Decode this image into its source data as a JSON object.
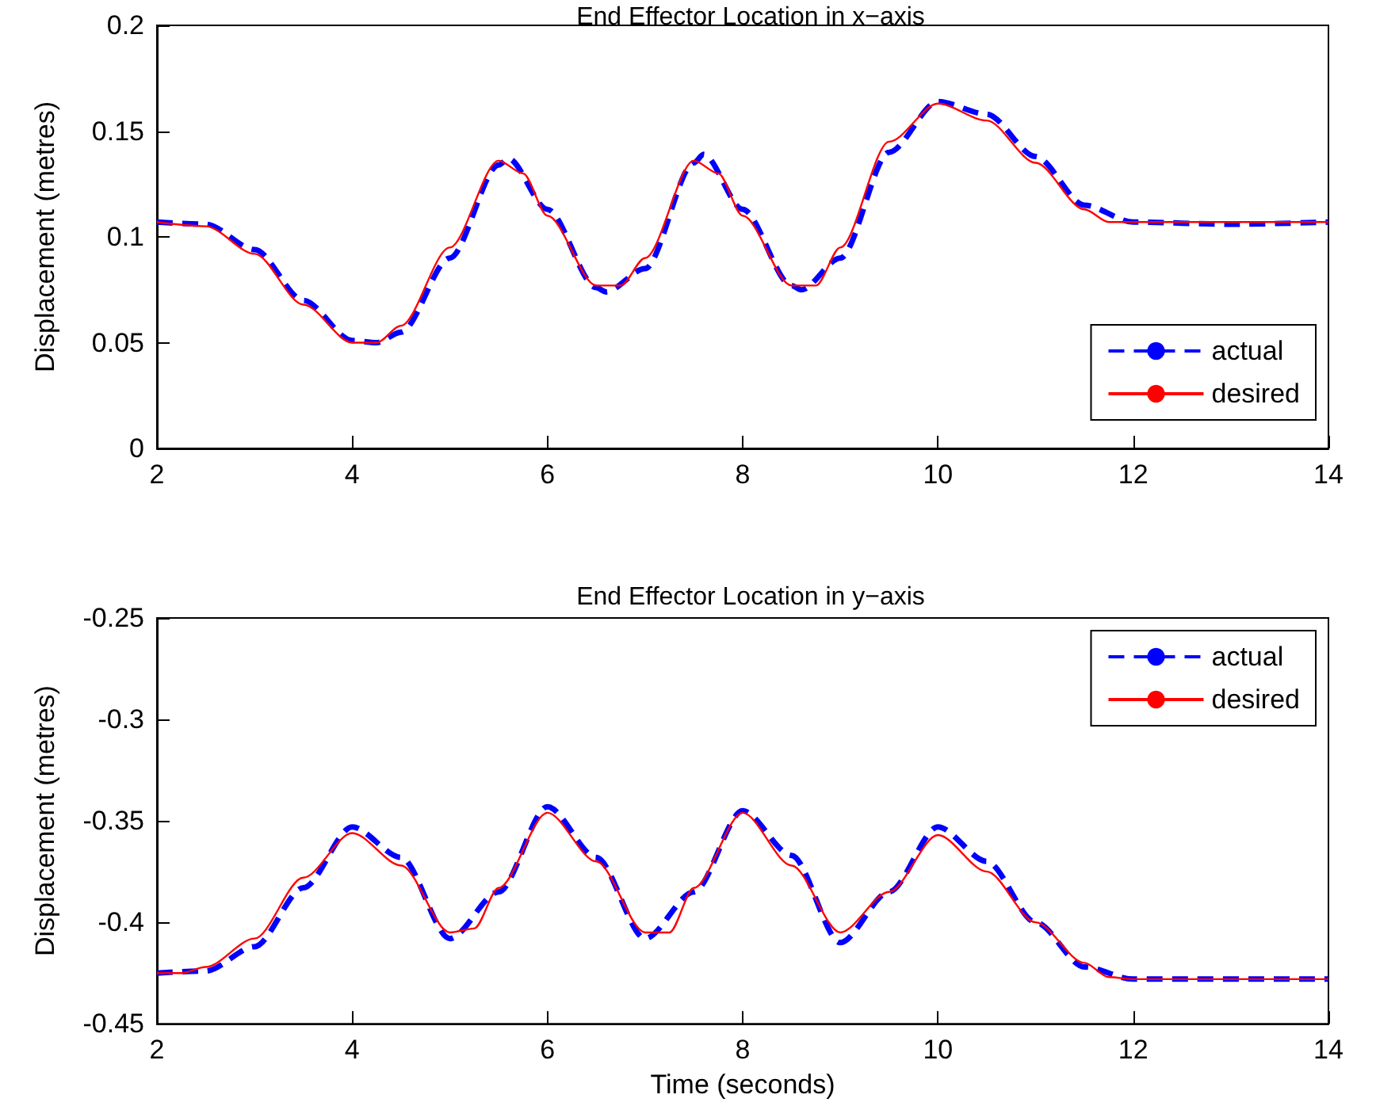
{
  "chart_data": [
    {
      "type": "line",
      "title": "End Effector Location in x−axis",
      "ylabel": "Displacement (metres)",
      "xlim": [
        2,
        14
      ],
      "xticks": [
        2,
        4,
        6,
        8,
        10,
        12,
        14
      ],
      "ylim": [
        0,
        0.2
      ],
      "yticks": [
        0,
        0.05,
        0.1,
        0.15,
        0.2
      ],
      "grid": false,
      "legend": "bottom right",
      "marker": "none",
      "series": [
        {
          "name": "actual",
          "color": "#0000ff",
          "line_style": "dashed",
          "x": [
            2,
            2.5,
            3,
            3.5,
            4,
            4.25,
            4.5,
            5,
            5.5,
            5.6,
            6,
            6.5,
            6.6,
            7,
            7.5,
            7.6,
            8,
            8.5,
            8.6,
            9,
            9.5,
            10,
            10.5,
            11,
            11.5,
            12,
            13,
            14
          ],
          "values": [
            0.107,
            0.106,
            0.094,
            0.07,
            0.051,
            0.05,
            0.055,
            0.09,
            0.134,
            0.137,
            0.113,
            0.076,
            0.074,
            0.085,
            0.135,
            0.139,
            0.113,
            0.077,
            0.075,
            0.09,
            0.14,
            0.164,
            0.158,
            0.138,
            0.115,
            0.107,
            0.106,
            0.107
          ]
        },
        {
          "name": "desired",
          "color": "#ff0000",
          "line_style": "solid",
          "x": [
            2,
            2.5,
            3,
            3.5,
            4,
            4.25,
            4.5,
            5,
            5.5,
            5.75,
            6,
            6.5,
            6.75,
            7,
            7.5,
            7.75,
            8,
            8.5,
            8.75,
            9,
            9.5,
            10,
            10.5,
            11,
            11.5,
            11.75,
            12,
            14
          ],
          "values": [
            0.107,
            0.105,
            0.092,
            0.068,
            0.05,
            0.05,
            0.058,
            0.095,
            0.136,
            0.13,
            0.11,
            0.077,
            0.077,
            0.09,
            0.136,
            0.13,
            0.11,
            0.077,
            0.077,
            0.095,
            0.145,
            0.163,
            0.155,
            0.135,
            0.113,
            0.107,
            0.107,
            0.107
          ]
        }
      ]
    },
    {
      "type": "line",
      "title": "End Effector Location in y−axis",
      "xlabel": "Time (seconds)",
      "ylabel": "Displacement (metres)",
      "xlim": [
        2,
        14
      ],
      "xticks": [
        2,
        4,
        6,
        8,
        10,
        12,
        14
      ],
      "ylim": [
        -0.45,
        -0.25
      ],
      "yticks": [
        -0.45,
        -0.4,
        -0.35,
        -0.3,
        -0.25
      ],
      "grid": false,
      "legend": "top right",
      "marker": "none",
      "series": [
        {
          "name": "actual",
          "color": "#0000ff",
          "line_style": "dashed",
          "x": [
            2,
            2.5,
            3,
            3.5,
            4,
            4.5,
            5,
            5.5,
            6,
            6.5,
            7,
            7.5,
            8,
            8.5,
            9,
            9.5,
            10,
            10.5,
            11,
            11.5,
            12,
            14
          ],
          "values": [
            -0.425,
            -0.424,
            -0.412,
            -0.383,
            -0.353,
            -0.368,
            -0.408,
            -0.385,
            -0.343,
            -0.368,
            -0.408,
            -0.385,
            -0.345,
            -0.367,
            -0.41,
            -0.385,
            -0.353,
            -0.37,
            -0.4,
            -0.422,
            -0.428,
            -0.428
          ]
        },
        {
          "name": "desired",
          "color": "#ff0000",
          "line_style": "solid",
          "x": [
            2,
            2.25,
            2.5,
            3,
            3.5,
            4,
            4.5,
            5,
            5.25,
            5.5,
            6,
            6.5,
            7,
            7.25,
            7.5,
            8,
            8.5,
            9,
            9.5,
            10,
            10.5,
            11,
            11.5,
            11.75,
            12,
            14
          ],
          "values": [
            -0.425,
            -0.425,
            -0.422,
            -0.408,
            -0.378,
            -0.356,
            -0.372,
            -0.405,
            -0.403,
            -0.383,
            -0.346,
            -0.37,
            -0.405,
            -0.405,
            -0.383,
            -0.346,
            -0.372,
            -0.405,
            -0.385,
            -0.357,
            -0.375,
            -0.4,
            -0.42,
            -0.427,
            -0.428,
            -0.428
          ]
        }
      ]
    }
  ]
}
